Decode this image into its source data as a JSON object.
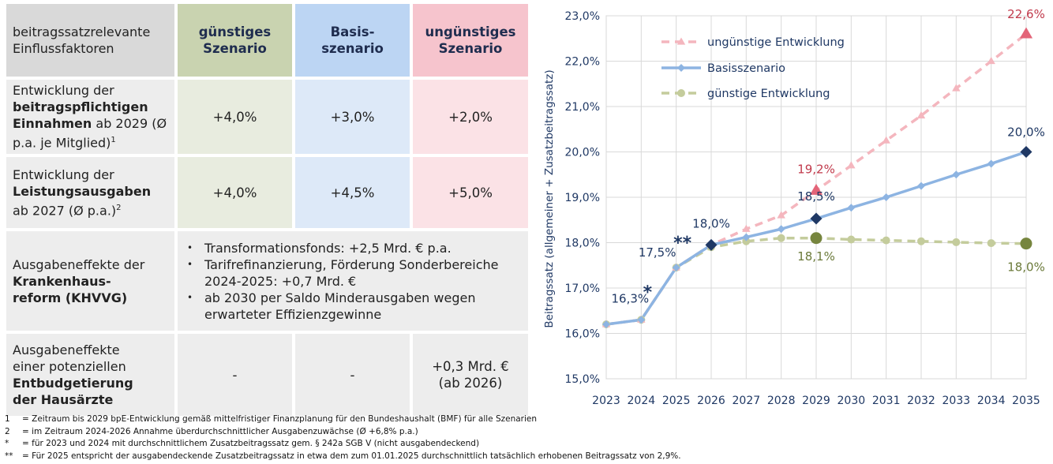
{
  "table": {
    "headers": {
      "factor_label": "beitragssatzrelevante Einflussfaktoren",
      "favorable": [
        "günstiges",
        "Szenario"
      ],
      "base": [
        "Basis-",
        "szenario"
      ],
      "unfavorable": [
        "ungünstiges",
        "Szenario"
      ]
    },
    "rows": [
      {
        "label_pre": "Entwicklung der",
        "label_bold": "beitragspflichtigen Einnahmen",
        "label_post": " ab 2029 (Ø p.a. je Mitglied)",
        "label_sup": "1",
        "favorable": "+4,0%",
        "base": "+3,0%",
        "unfavorable": "+2,0%"
      },
      {
        "label_pre": "Entwicklung der",
        "label_bold": "Leistungsausgaben",
        "label_post": "ab 2027 (Ø p.a.)",
        "label_sup": "2",
        "favorable": "+4,0%",
        "base": "+4,5%",
        "unfavorable": "+5,0%"
      },
      {
        "label_pre": "Ausgabeneffekte der",
        "label_bold": "Krankenhaus-reform (KHVVG)",
        "bullets": [
          "Transformationsfonds: +2,5 Mrd. € p.a.",
          "Tarifrefinanzierung, Förderung Sonderbereiche 2024-2025: +0,7 Mrd. €",
          "ab 2030 per Saldo Minderausgaben wegen erwarteter Effizienzgewinne"
        ]
      },
      {
        "label_pre": "Ausgabeneffekte einer potenziellen",
        "label_bold": "Entbudgetierung der Hausärzte",
        "favorable": "-",
        "base": "-",
        "unfavorable": "+0,3 Mrd. € (ab 2026)"
      }
    ]
  },
  "footnotes": [
    {
      "key": "1",
      "text": "= Zeitraum bis 2029 bpE-Entwicklung gemäß mittelfristiger Finanzplanung für den Bundeshaushalt (BMF) für alle Szenarien"
    },
    {
      "key": "2",
      "text": "= im Zeitraum 2024-2026 Annahme überdurchschnittlicher Ausgabenzuwächse (Ø +6,8% p.a.)"
    },
    {
      "key": "*",
      "text": "= für 2023 und 2024 mit durchschnittlichem Zusatzbeitragssatz gem. § 242a SGB V (nicht ausgabendeckend)"
    },
    {
      "key": "**",
      "text": "= Für 2025 entspricht der ausgabendeckende Zusatzbeitragssatz in etwa dem zum 01.01.2025 durchschnittlich tatsächlich erhobenen Beitragssatz von 2,9%."
    }
  ],
  "chart_data": {
    "type": "line",
    "ylabel": "Beitragssatz (allgemeiner + Zusatzbeitragssatz)",
    "ylim": [
      15.0,
      23.0
    ],
    "yticks": [
      "15,0%",
      "16,0%",
      "17,0%",
      "18,0%",
      "19,0%",
      "20,0%",
      "21,0%",
      "22,0%",
      "23,0%"
    ],
    "x": [
      "2023",
      "2024",
      "2025",
      "2026",
      "2027",
      "2028",
      "2029",
      "2030",
      "2031",
      "2032",
      "2033",
      "2034",
      "2035"
    ],
    "grid": true,
    "legend_position": "top-left",
    "series": [
      {
        "name": "ungünstige Entwicklung",
        "color": "#f4b6be",
        "values": [
          16.2,
          16.3,
          17.45,
          17.95,
          18.3,
          18.6,
          19.15,
          19.7,
          20.25,
          20.8,
          21.4,
          22.0,
          22.6
        ]
      },
      {
        "name": "Basisszenario",
        "color": "#8db4e2",
        "values": [
          16.2,
          16.3,
          17.45,
          17.95,
          18.12,
          18.3,
          18.53,
          18.77,
          19.0,
          19.25,
          19.5,
          19.74,
          20.0
        ]
      },
      {
        "name": "günstige Entwicklung",
        "color": "#c4cc9c",
        "values": [
          16.2,
          16.3,
          17.45,
          17.9,
          18.03,
          18.1,
          18.1,
          18.07,
          18.05,
          18.03,
          18.01,
          17.99,
          17.98
        ]
      }
    ],
    "annotations": [
      {
        "text": "16,3%",
        "x": "2024",
        "y": 16.3,
        "color": "#1f3864"
      },
      {
        "text": "*",
        "x": "2024",
        "y": 16.3,
        "color": "#1f3864"
      },
      {
        "text": "17,5%",
        "x": "2025",
        "y": 17.45,
        "color": "#1f3864"
      },
      {
        "text": "**",
        "x": "2025",
        "y": 17.45,
        "color": "#1f3864"
      },
      {
        "text": "18,0%",
        "x": "2026",
        "y": 17.95,
        "color": "#1f3864"
      },
      {
        "text": "19,2%",
        "x": "2029",
        "y": 19.15,
        "color": "#c0394b"
      },
      {
        "text": "18,5%",
        "x": "2029",
        "y": 18.53,
        "color": "#1f3864"
      },
      {
        "text": "18,1%",
        "x": "2029",
        "y": 18.1,
        "color": "#6b7a3a"
      },
      {
        "text": "22,6%",
        "x": "2035",
        "y": 22.6,
        "color": "#c0394b"
      },
      {
        "text": "20,0%",
        "x": "2035",
        "y": 20.0,
        "color": "#1f3864"
      },
      {
        "text": "18,0%",
        "x": "2035",
        "y": 17.98,
        "color": "#6b7a3a"
      }
    ],
    "highlight_markers": [
      {
        "series": "ungünstige Entwicklung",
        "x": "2029",
        "shape": "triangle",
        "color": "#e36478"
      },
      {
        "series": "ungünstige Entwicklung",
        "x": "2035",
        "shape": "triangle",
        "color": "#e36478"
      },
      {
        "series": "Basisszenario",
        "x": "2026",
        "shape": "diamond",
        "color": "#1f3864"
      },
      {
        "series": "Basisszenario",
        "x": "2029",
        "shape": "diamond",
        "color": "#1f3864"
      },
      {
        "series": "Basisszenario",
        "x": "2035",
        "shape": "diamond",
        "color": "#1f3864"
      },
      {
        "series": "günstige Entwicklung",
        "x": "2029",
        "shape": "circle",
        "color": "#76853e"
      },
      {
        "series": "günstige Entwicklung",
        "x": "2035",
        "shape": "circle",
        "color": "#76853e"
      }
    ]
  }
}
